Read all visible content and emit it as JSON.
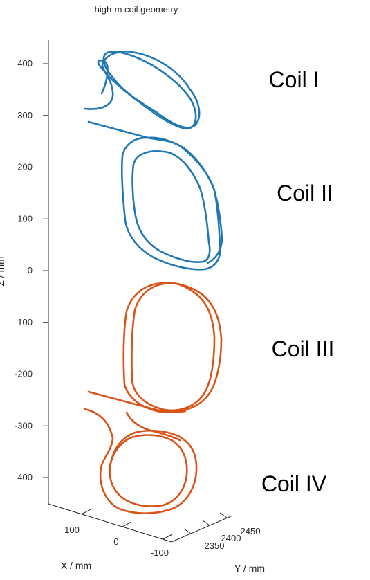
{
  "chart_data": {
    "type": "line",
    "projection": "3d",
    "title": "high-m coil geometry",
    "xlabel": "X / mm",
    "ylabel": "Y / mm",
    "zlabel": "Z / mm",
    "z_ticks": [
      400,
      300,
      200,
      100,
      0,
      -100,
      -200,
      -300,
      -400
    ],
    "x_ticks": [
      100,
      0,
      -100
    ],
    "y_ticks": [
      2350,
      2400,
      2450
    ],
    "grid": false,
    "colors": {
      "upper_coils": "#1f77b4",
      "lower_coils": "#d95319"
    },
    "series": [
      {
        "label": "Coil I",
        "color": "#1f77b4",
        "z_range": [
          290,
          420
        ]
      },
      {
        "label": "Coil II",
        "color": "#1f77b4",
        "z_range": [
          -10,
          255
        ]
      },
      {
        "label": "Coil III",
        "color": "#d95319",
        "z_range": [
          -275,
          -25
        ]
      },
      {
        "label": "Coil IV",
        "color": "#d95319",
        "z_range": [
          -470,
          -315
        ]
      }
    ]
  }
}
